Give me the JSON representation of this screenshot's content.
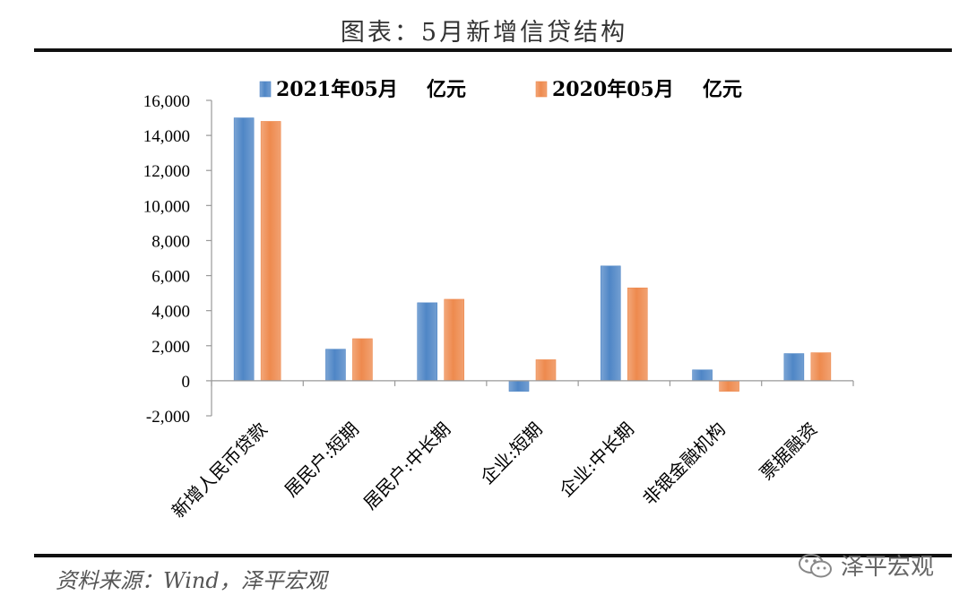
{
  "title": "图表：5月新增信贷结构",
  "source": "资料来源：Wind，泽平宏观",
  "watermark": "泽平宏观",
  "colors": {
    "series_2021": "#4f86c6",
    "series_2020": "#ee8a4e",
    "axis": "#999999"
  },
  "chart_data": {
    "type": "bar",
    "categories": [
      "新增人民币贷款",
      "居民户:短期",
      "居民户:中长期",
      "企业:短期",
      "企业:中长期",
      "非银金融机构",
      "票据融资"
    ],
    "series": [
      {
        "name": "2021年05月",
        "unit": "亿元",
        "values": [
          15000,
          1800,
          4450,
          -600,
          6550,
          620,
          1550
        ]
      },
      {
        "name": "2020年05月",
        "unit": "亿元",
        "values": [
          14800,
          2400,
          4650,
          1200,
          5300,
          -600,
          1600
        ]
      }
    ],
    "ylim": [
      -2000,
      16000
    ],
    "yticks": [
      "-2,000",
      "0",
      "2,000",
      "4,000",
      "6,000",
      "8,000",
      "10,000",
      "12,000",
      "14,000",
      "16,000"
    ],
    "ytick_values": [
      -2000,
      0,
      2000,
      4000,
      6000,
      8000,
      10000,
      12000,
      14000,
      16000
    ],
    "legend": "top",
    "grid": false
  }
}
